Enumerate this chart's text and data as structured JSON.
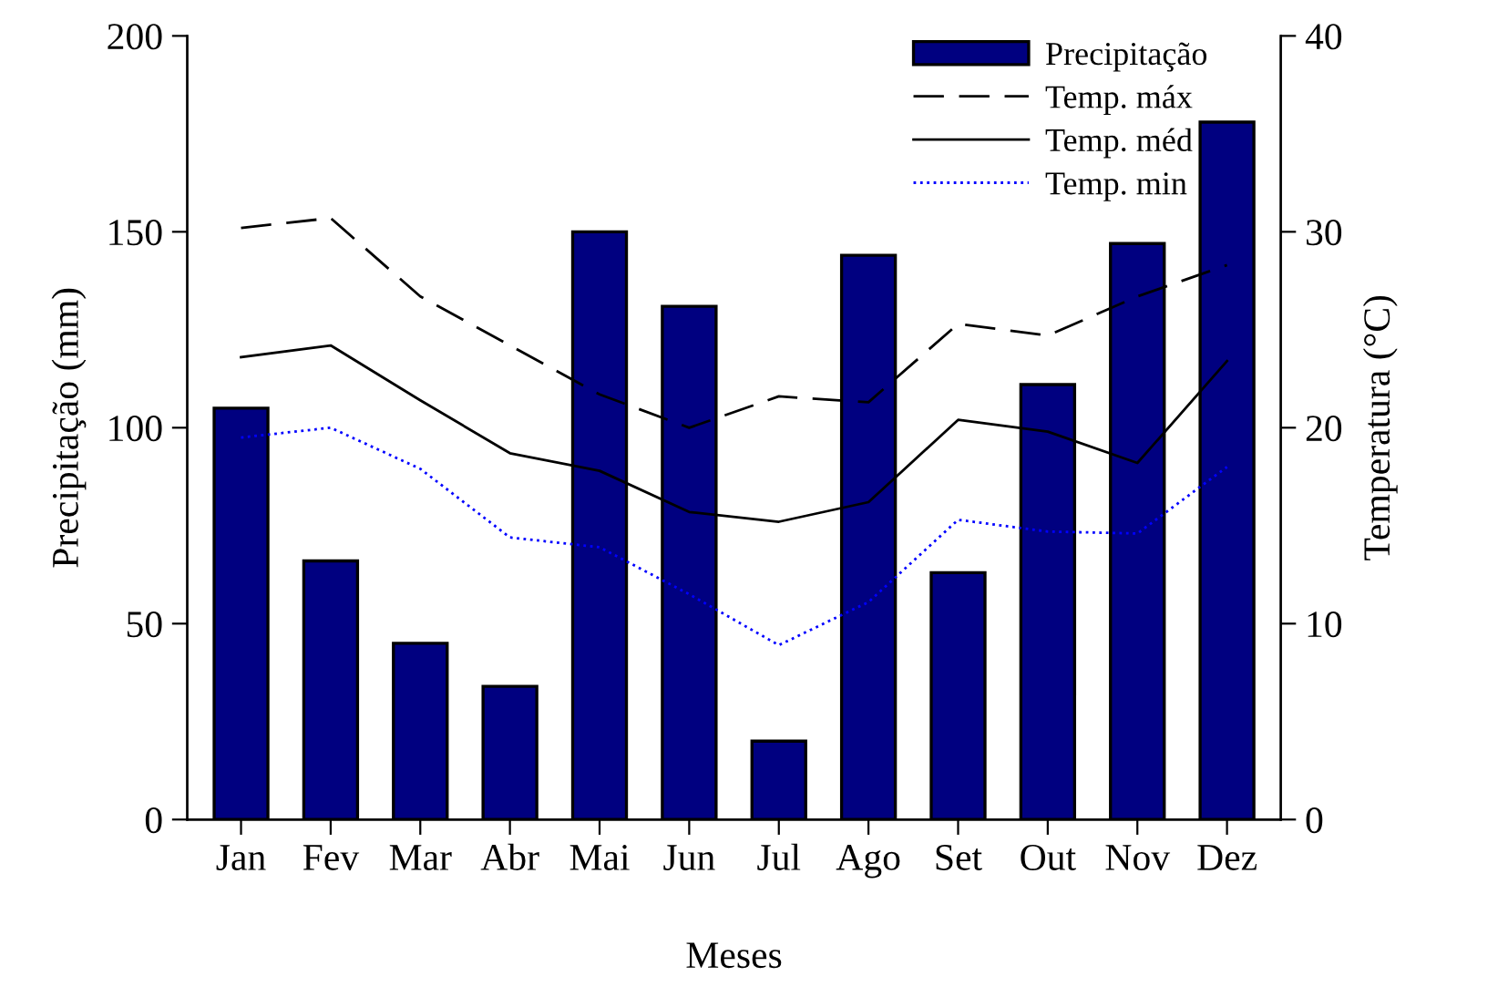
{
  "chart_data": {
    "type": "bar",
    "xlabel": "Meses",
    "ylabel": "Precipitação (mm)",
    "y2label": "Temperatura (°C)",
    "categories": [
      "Jan",
      "Fev",
      "Mar",
      "Abr",
      "Mai",
      "Jun",
      "Jul",
      "Ago",
      "Set",
      "Out",
      "Nov",
      "Dez"
    ],
    "ylim": [
      0,
      200
    ],
    "yticks": [
      0,
      50,
      100,
      150,
      200
    ],
    "y2lim": [
      0,
      40
    ],
    "y2ticks": [
      0,
      10,
      20,
      30,
      40
    ],
    "grid": false,
    "legend": "top right",
    "series": [
      {
        "name": "Precipitação",
        "color": "#000080",
        "values": [
          105,
          66,
          45,
          34,
          150,
          131,
          20,
          144,
          63,
          111,
          147,
          178
        ]
      },
      {
        "name": "Temp. máx",
        "type": "line",
        "axis": "y2",
        "color": "#000000",
        "line_style": "dashed",
        "values": [
          30.2,
          30.7,
          26.7,
          24.2,
          21.7,
          20.0,
          21.6,
          21.3,
          25.3,
          24.7,
          26.7,
          28.3
        ]
      },
      {
        "name": "Temp. méd",
        "type": "line",
        "axis": "y2",
        "color": "#000000",
        "line_style": "solid",
        "values": [
          23.6,
          24.2,
          21.4,
          18.7,
          17.8,
          15.7,
          15.2,
          16.2,
          20.4,
          19.8,
          18.2,
          23.4
        ]
      },
      {
        "name": "Temp. min",
        "type": "line",
        "axis": "y2",
        "color": "#0000ff",
        "line_style": "dotted",
        "values": [
          19.5,
          20.0,
          17.9,
          14.4,
          13.9,
          11.5,
          8.9,
          11.1,
          15.3,
          14.7,
          14.6,
          18.0
        ]
      }
    ]
  }
}
